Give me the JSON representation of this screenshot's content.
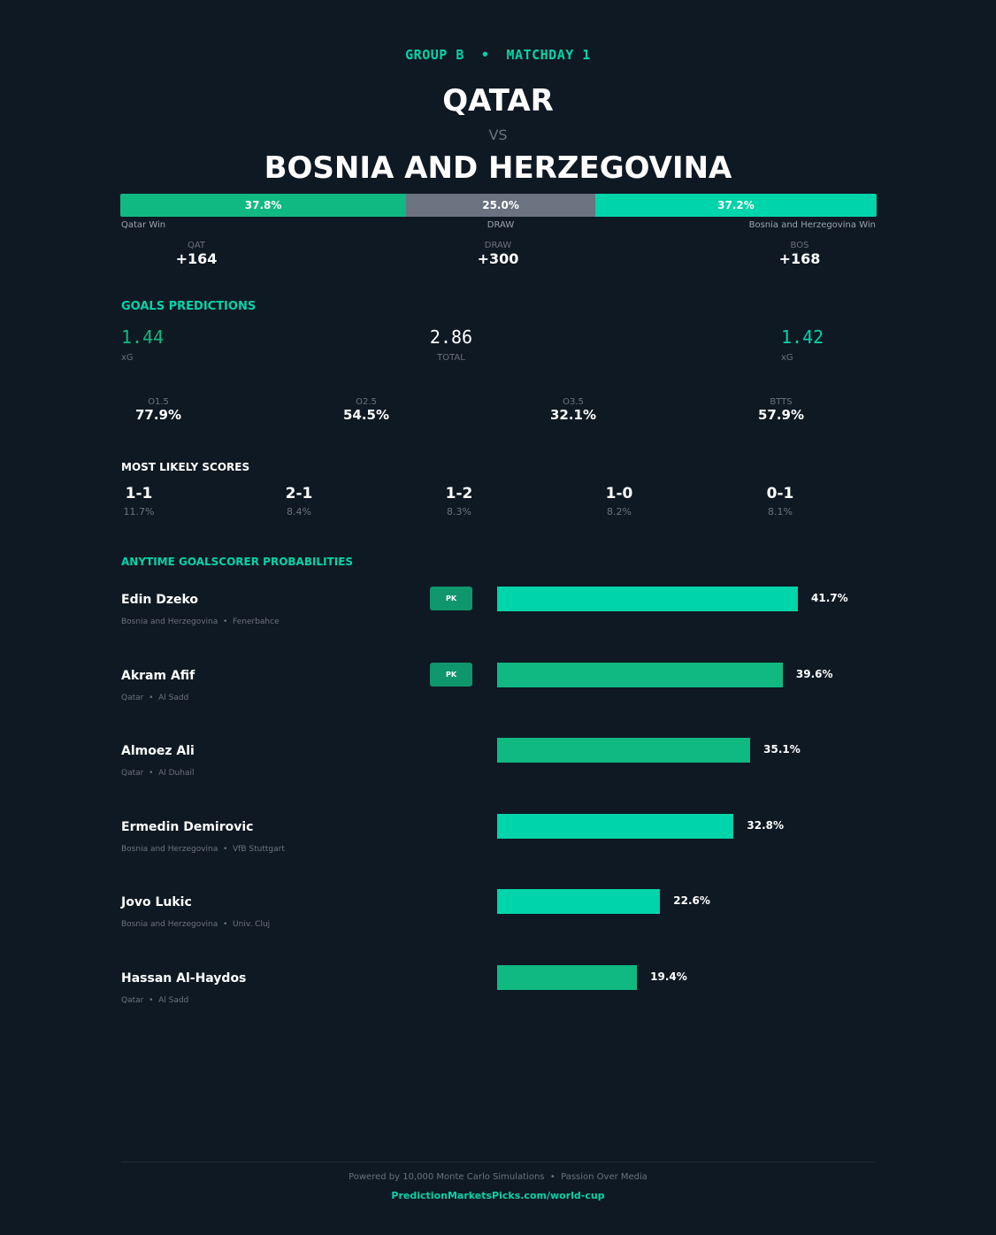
{
  "header": {
    "group": "GROUP B  •  MATCHDAY 1",
    "home": "QATAR",
    "vs": "VS",
    "away": "BOSNIA AND HERZEGOVINA"
  },
  "probabilities": {
    "home": {
      "pct": 37.8,
      "label": "37.8%",
      "caption": "Qatar Win",
      "color": "#10b981"
    },
    "draw": {
      "pct": 25.0,
      "label": "25.0%",
      "caption": "DRAW",
      "color": "#6b7280"
    },
    "away": {
      "pct": 37.2,
      "label": "37.2%",
      "caption": "Bosnia and Herzegovina Win",
      "color": "#00d4aa"
    }
  },
  "odds": [
    {
      "code": "QAT",
      "value": "+164"
    },
    {
      "code": "DRAW",
      "value": "+300"
    },
    {
      "code": "BOS",
      "value": "+168"
    }
  ],
  "goals": {
    "title": "GOALS PREDICTIONS",
    "home_xg": "1.44",
    "home_label": "xG",
    "total": "2.86",
    "total_label": "TOTAL",
    "away_xg": "1.42",
    "away_label": "xG",
    "markets": [
      {
        "label": "O1.5",
        "value": "77.9%"
      },
      {
        "label": "O2.5",
        "value": "54.5%"
      },
      {
        "label": "O3.5",
        "value": "32.1%"
      },
      {
        "label": "BTTS",
        "value": "57.9%"
      }
    ]
  },
  "scores": {
    "title": "MOST LIKELY SCORES",
    "items": [
      {
        "score": "1-1",
        "pct": "11.7%"
      },
      {
        "score": "2-1",
        "pct": "8.4%"
      },
      {
        "score": "1-2",
        "pct": "8.3%"
      },
      {
        "score": "1-0",
        "pct": "8.2%"
      },
      {
        "score": "0-1",
        "pct": "8.1%"
      }
    ]
  },
  "scorers": {
    "title": "ANYTIME GOALSCORER PROBABILITIES",
    "pk_label": "PK",
    "items": [
      {
        "name": "Edin Dzeko",
        "info": "Bosnia and Herzegovina  •  Fenerbahce",
        "pk": true,
        "value": 41.7,
        "label": "41.7%",
        "color": "#00d4aa"
      },
      {
        "name": "Akram Afif",
        "info": "Qatar  •  Al Sadd",
        "pk": true,
        "value": 39.6,
        "label": "39.6%",
        "color": "#10b981"
      },
      {
        "name": "Almoez Ali",
        "info": "Qatar  •  Al Duhail",
        "pk": false,
        "value": 35.1,
        "label": "35.1%",
        "color": "#10b981"
      },
      {
        "name": "Ermedin Demirovic",
        "info": "Bosnia and Herzegovina  •  VfB Stuttgart",
        "pk": false,
        "value": 32.8,
        "label": "32.8%",
        "color": "#00d4aa"
      },
      {
        "name": "Jovo Lukic",
        "info": "Bosnia and Herzegovina  •  Univ. Cluj",
        "pk": false,
        "value": 22.6,
        "label": "22.6%",
        "color": "#00d4aa"
      },
      {
        "name": "Hassan Al-Haydos",
        "info": "Qatar  •  Al Sadd",
        "pk": false,
        "value": 19.4,
        "label": "19.4%",
        "color": "#10b981"
      }
    ]
  },
  "footer": {
    "text": "Powered by 10,000 Monte Carlo Simulations  •  Passion Over Media",
    "link": "PredictionMarketsPicks.com/world-cup"
  }
}
